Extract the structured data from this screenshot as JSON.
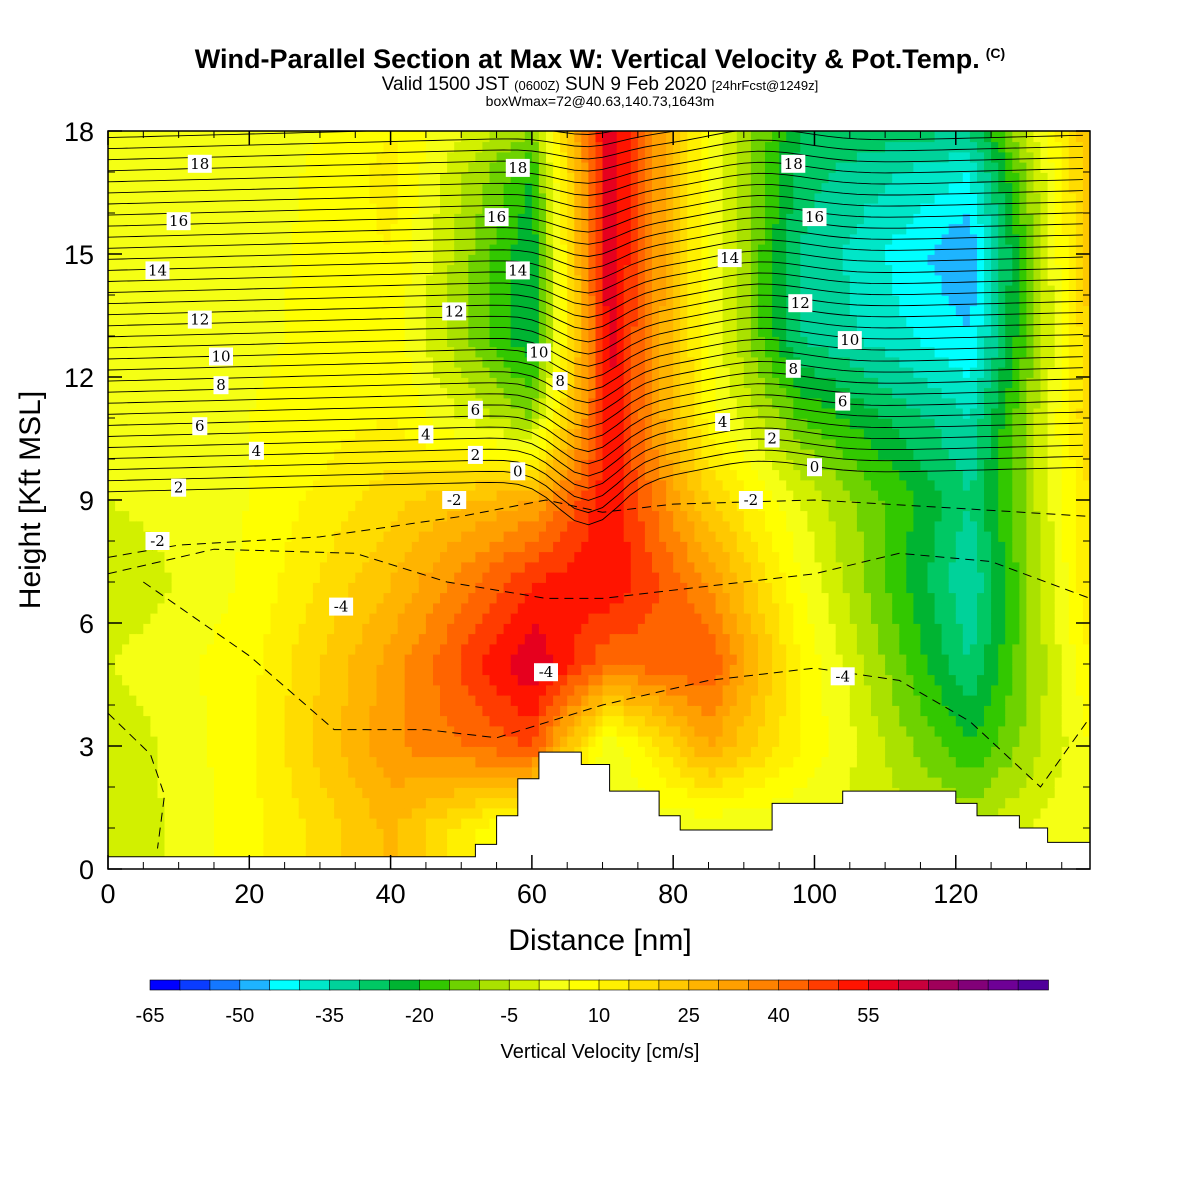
{
  "chart_data": {
    "type": "heatmap",
    "title": "Wind-Parallel Section at Max W: Vertical Velocity & Pot.Temp.",
    "title_tag": "(C)",
    "subtitle_main_a": "Valid 1500 JST",
    "subtitle_small_a": "(0600Z)",
    "subtitle_main_b": "SUN 9 Feb 2020",
    "subtitle_small_b": "[24hrFcst@1249z]",
    "subtitle2": "boxWmax=72@40.63,140.73,1643m",
    "xlabel": "Distance [nm]",
    "ylabel": "Height [Kft MSL]",
    "xlim": [
      0,
      139
    ],
    "ylim": [
      0,
      18
    ],
    "x_ticks": [
      0,
      20,
      40,
      60,
      80,
      100,
      120
    ],
    "y_ticks": [
      0,
      3,
      6,
      9,
      12,
      15,
      18
    ],
    "colorbar": {
      "label": "Vertical Velocity [cm/s]",
      "min": -65,
      "max": 60,
      "step": 5,
      "tick_values": [
        -65,
        -50,
        -35,
        -20,
        -5,
        10,
        25,
        40,
        55
      ],
      "tick_labels": [
        "-65",
        "-50",
        "-35",
        "-20",
        "-5",
        "10",
        "25",
        "40",
        "55"
      ],
      "colors": [
        "#0000ff",
        "#0a3cff",
        "#1478ff",
        "#1eb4ff",
        "#00ffff",
        "#00e6c8",
        "#00d29a",
        "#00c864",
        "#00b432",
        "#32c800",
        "#6ed200",
        "#aae100",
        "#d2f000",
        "#f5ff14",
        "#ffff00",
        "#fff000",
        "#ffdc00",
        "#ffc800",
        "#ffb400",
        "#ffa000",
        "#ff8200",
        "#ff6400",
        "#ff3c00",
        "#ff1400",
        "#e6001e",
        "#c8003c",
        "#a0005a",
        "#820078",
        "#6e0096",
        "#50009a"
      ]
    },
    "vertical_velocity_columns": [
      {
        "x": 0,
        "values": [
          -5,
          -5,
          0,
          -5,
          0,
          2,
          5,
          5,
          5,
          5
        ]
      },
      {
        "x": 20,
        "values": [
          8,
          9,
          8,
          6,
          5,
          5,
          4,
          3,
          1,
          0
        ]
      },
      {
        "x": 40,
        "values": [
          26,
          34,
          32,
          25,
          18,
          10,
          8,
          10,
          12,
          10
        ]
      },
      {
        "x": 60,
        "values": [
          0,
          45,
          60,
          50,
          30,
          -10,
          -25,
          -25,
          -20,
          -10
        ]
      },
      {
        "x": 71,
        "values": [
          0,
          0,
          40,
          55,
          55,
          55,
          58,
          60,
          60,
          60
        ]
      },
      {
        "x": 85,
        "values": [
          0,
          30,
          45,
          35,
          20,
          8,
          5,
          5,
          5,
          5
        ]
      },
      {
        "x": 98,
        "values": [
          0,
          10,
          10,
          5,
          0,
          -15,
          -30,
          -30,
          -28,
          -25
        ]
      },
      {
        "x": 122,
        "values": [
          -5,
          -20,
          -30,
          -35,
          -30,
          -35,
          -45,
          -50,
          -40,
          -30
        ]
      },
      {
        "x": 139,
        "values": [
          5,
          5,
          10,
          15,
          15,
          20,
          20,
          25,
          25,
          25
        ]
      }
    ],
    "height_levels_kft": [
      1,
      3,
      5,
      7,
      9,
      11,
      13,
      15,
      17,
      18
    ],
    "terrain_kft": [
      {
        "x": 0,
        "h": 0.3
      },
      {
        "x": 52,
        "h": 0.6
      },
      {
        "x": 55,
        "h": 1.3
      },
      {
        "x": 58,
        "h": 2.2
      },
      {
        "x": 61,
        "h": 2.85
      },
      {
        "x": 67,
        "h": 2.55
      },
      {
        "x": 71,
        "h": 1.9
      },
      {
        "x": 78,
        "h": 1.3
      },
      {
        "x": 81,
        "h": 0.95
      },
      {
        "x": 94,
        "h": 1.6
      },
      {
        "x": 104,
        "h": 1.9
      },
      {
        "x": 120,
        "h": 1.6
      },
      {
        "x": 123,
        "h": 1.3
      },
      {
        "x": 129,
        "h": 1.0
      },
      {
        "x": 133,
        "h": 0.65
      },
      {
        "x": 139,
        "h": 0.65
      }
    ],
    "pot_temp_contour_labels": [
      {
        "label": "18",
        "x": 13,
        "y": 17.2
      },
      {
        "label": "16",
        "x": 10,
        "y": 15.8
      },
      {
        "label": "14",
        "x": 7,
        "y": 14.6
      },
      {
        "label": "12",
        "x": 13,
        "y": 13.4
      },
      {
        "label": "10",
        "x": 16,
        "y": 12.5
      },
      {
        "label": "8",
        "x": 16,
        "y": 11.8
      },
      {
        "label": "6",
        "x": 13,
        "y": 10.8
      },
      {
        "label": "4",
        "x": 21,
        "y": 10.2
      },
      {
        "label": "2",
        "x": 10,
        "y": 9.3
      },
      {
        "label": "-2",
        "x": 7,
        "y": 8.0
      },
      {
        "label": "-4",
        "x": 33,
        "y": 6.4
      },
      {
        "label": "-4",
        "x": 62,
        "y": 4.8
      },
      {
        "label": "-4",
        "x": 104,
        "y": 4.7
      },
      {
        "label": "-2",
        "x": 49,
        "y": 9.0
      },
      {
        "label": "-2",
        "x": 91,
        "y": 9.0
      },
      {
        "label": "0",
        "x": 58,
        "y": 9.7
      },
      {
        "label": "2",
        "x": 52,
        "y": 10.1
      },
      {
        "label": "4",
        "x": 45,
        "y": 10.6
      },
      {
        "label": "6",
        "x": 52,
        "y": 11.2
      },
      {
        "label": "8",
        "x": 64,
        "y": 11.9
      },
      {
        "label": "10",
        "x": 61,
        "y": 12.6
      },
      {
        "label": "12",
        "x": 49,
        "y": 13.6
      },
      {
        "label": "14",
        "x": 58,
        "y": 14.6
      },
      {
        "label": "16",
        "x": 55,
        "y": 15.9
      },
      {
        "label": "18",
        "x": 58,
        "y": 17.1
      },
      {
        "label": "14",
        "x": 88,
        "y": 14.9
      },
      {
        "label": "12",
        "x": 98,
        "y": 13.8
      },
      {
        "label": "10",
        "x": 105,
        "y": 12.9
      },
      {
        "label": "8",
        "x": 97,
        "y": 12.2
      },
      {
        "label": "6",
        "x": 104,
        "y": 11.4
      },
      {
        "label": "4",
        "x": 87,
        "y": 10.9
      },
      {
        "label": "2",
        "x": 94,
        "y": 10.5
      },
      {
        "label": "0",
        "x": 100,
        "y": 9.8
      },
      {
        "label": "16",
        "x": 100,
        "y": 15.9
      },
      {
        "label": "18",
        "x": 97,
        "y": 17.2
      }
    ]
  }
}
